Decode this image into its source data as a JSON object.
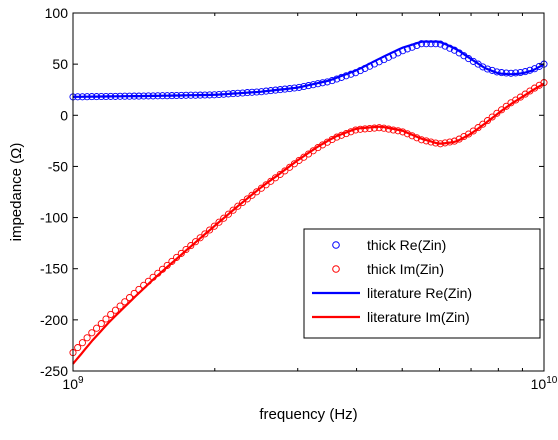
{
  "chart_data": {
    "type": "line",
    "title": "",
    "xlabel": "frequency (Hz)",
    "ylabel": "impedance (Ω)",
    "xscale": "log",
    "xlim": [
      1000000000,
      10000000000
    ],
    "ylim": [
      -250,
      100
    ],
    "grid": false,
    "legend_position": "bottom-right",
    "x_ticks": [
      {
        "value": 1000000000,
        "base": "10",
        "exp": "9"
      },
      {
        "value": 10000000000,
        "base": "10",
        "exp": "10"
      }
    ],
    "y_ticks": [
      {
        "value": 100,
        "label": "100"
      },
      {
        "value": 50,
        "label": "50"
      },
      {
        "value": 0,
        "label": "0"
      },
      {
        "value": -50,
        "label": "-50"
      },
      {
        "value": -100,
        "label": "-100"
      },
      {
        "value": -150,
        "label": "-150"
      },
      {
        "value": -200,
        "label": "-200"
      },
      {
        "value": -250,
        "label": "-250"
      }
    ],
    "series": [
      {
        "name": "thick Re(Zin)",
        "style": "markers",
        "color": "#0000ff",
        "x": [
          1000000000,
          1500000000,
          2000000000,
          2500000000,
          3000000000,
          3500000000,
          4000000000,
          4500000000,
          5000000000,
          5500000000,
          6000000000,
          6500000000,
          7000000000,
          7500000000,
          8000000000,
          8500000000,
          9000000000,
          9500000000,
          10000000000
        ],
        "y": [
          18,
          19,
          20,
          23,
          27,
          33,
          42,
          53,
          63,
          70,
          70,
          63,
          54,
          46,
          42,
          41,
          42,
          45,
          50
        ]
      },
      {
        "name": "thick Im(Zin)",
        "style": "markers",
        "color": "#ff0000",
        "x": [
          1000000000,
          1100000000,
          1200000000,
          1350000000,
          1500000000,
          1750000000,
          2000000000,
          2250000000,
          2500000000,
          2750000000,
          3000000000,
          3300000000,
          3600000000,
          4000000000,
          4500000000,
          5000000000,
          5500000000,
          6000000000,
          6500000000,
          7000000000,
          7500000000,
          8000000000,
          8500000000,
          9000000000,
          9500000000,
          10000000000
        ],
        "y": [
          -232,
          -212,
          -195,
          -174,
          -156,
          -130,
          -108,
          -88,
          -72,
          -58,
          -45,
          -32,
          -22,
          -14,
          -12,
          -16,
          -24,
          -28,
          -25,
          -17,
          -7,
          3,
          12,
          19,
          26,
          32
        ]
      },
      {
        "name": "literature Re(Zin)",
        "style": "line",
        "color": "#0000ff",
        "x": [
          1000000000,
          1500000000,
          2000000000,
          2500000000,
          3000000000,
          3500000000,
          4000000000,
          4500000000,
          5000000000,
          5500000000,
          6000000000,
          6500000000,
          7000000000,
          7500000000,
          8000000000,
          8500000000,
          9000000000,
          9500000000,
          10000000000
        ],
        "y": [
          18,
          19,
          20,
          23,
          27,
          34,
          44,
          56,
          66,
          72,
          72,
          65,
          55,
          46,
          41,
          40,
          41,
          44,
          50
        ]
      },
      {
        "name": "literature Im(Zin)",
        "style": "line",
        "color": "#ff0000",
        "x": [
          1000000000,
          1100000000,
          1200000000,
          1350000000,
          1500000000,
          1750000000,
          2000000000,
          2250000000,
          2500000000,
          2750000000,
          3000000000,
          3300000000,
          3600000000,
          4000000000,
          4500000000,
          5000000000,
          5500000000,
          6000000000,
          6500000000,
          7000000000,
          7500000000,
          8000000000,
          8500000000,
          9000000000,
          9500000000,
          10000000000
        ],
        "y": [
          -243,
          -220,
          -201,
          -178,
          -158,
          -131,
          -108,
          -88,
          -71,
          -57,
          -44,
          -31,
          -21,
          -13,
          -11,
          -15,
          -23,
          -28,
          -26,
          -18,
          -8,
          2,
          11,
          18,
          25,
          31
        ]
      }
    ]
  }
}
